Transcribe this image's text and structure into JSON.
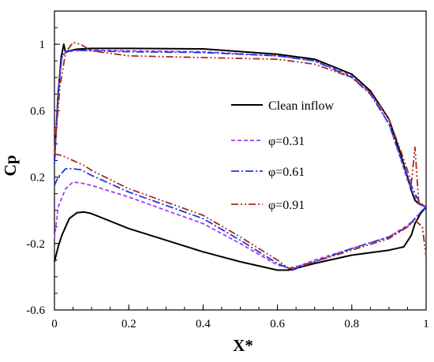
{
  "chart_data": {
    "type": "line",
    "xlabel": "X*",
    "ylabel": "Cp",
    "xlim": [
      0,
      1
    ],
    "ylim": [
      -0.6,
      1.2
    ],
    "x_ticks": [
      "0",
      "0.2",
      "0.4",
      "0.6",
      "0.8",
      "1"
    ],
    "y_ticks": [
      "1",
      "0.6",
      "0.2",
      "-0.2",
      "-0.6"
    ],
    "x_tick_values": [
      0,
      0.2,
      0.4,
      0.6,
      0.8,
      1.0
    ],
    "y_tick_values": [
      1,
      0.6,
      0.2,
      -0.2,
      -0.6
    ],
    "legend_position": "middle-right",
    "series": [
      {
        "name": "Clean inflow",
        "color": "#000000",
        "dash": "solid",
        "upper": [
          [
            0.0,
            0.3
          ],
          [
            0.01,
            0.7
          ],
          [
            0.018,
            0.92
          ],
          [
            0.025,
            1.0
          ],
          [
            0.03,
            0.95
          ],
          [
            0.04,
            0.96
          ],
          [
            0.06,
            0.97
          ],
          [
            0.1,
            0.975
          ],
          [
            0.2,
            0.975
          ],
          [
            0.4,
            0.972
          ],
          [
            0.6,
            0.94
          ],
          [
            0.7,
            0.91
          ],
          [
            0.8,
            0.82
          ],
          [
            0.85,
            0.72
          ],
          [
            0.9,
            0.55
          ],
          [
            0.93,
            0.35
          ],
          [
            0.95,
            0.2
          ],
          [
            0.96,
            0.12
          ],
          [
            0.97,
            0.06
          ],
          [
            0.98,
            0.04
          ],
          [
            1.0,
            0.02
          ]
        ],
        "lower": [
          [
            0.0,
            -0.31
          ],
          [
            0.01,
            -0.22
          ],
          [
            0.02,
            -0.15
          ],
          [
            0.04,
            -0.05
          ],
          [
            0.06,
            -0.015
          ],
          [
            0.08,
            -0.01
          ],
          [
            0.1,
            -0.02
          ],
          [
            0.2,
            -0.11
          ],
          [
            0.3,
            -0.18
          ],
          [
            0.4,
            -0.25
          ],
          [
            0.5,
            -0.31
          ],
          [
            0.6,
            -0.36
          ],
          [
            0.63,
            -0.36
          ],
          [
            0.7,
            -0.32
          ],
          [
            0.8,
            -0.27
          ],
          [
            0.9,
            -0.24
          ],
          [
            0.94,
            -0.22
          ],
          [
            0.96,
            -0.15
          ],
          [
            0.97,
            -0.08
          ],
          [
            0.985,
            -0.02
          ],
          [
            1.0,
            0.02
          ]
        ]
      },
      {
        "name": "φ=0.31",
        "color": "#a43cf0",
        "dash": "short-dash",
        "upper": [
          [
            0.0,
            0.3
          ],
          [
            0.01,
            0.72
          ],
          [
            0.02,
            0.92
          ],
          [
            0.03,
            0.95
          ],
          [
            0.05,
            0.96
          ],
          [
            0.1,
            0.965
          ],
          [
            0.2,
            0.96
          ],
          [
            0.4,
            0.955
          ],
          [
            0.6,
            0.93
          ],
          [
            0.7,
            0.9
          ],
          [
            0.8,
            0.81
          ],
          [
            0.85,
            0.71
          ],
          [
            0.9,
            0.52
          ],
          [
            0.93,
            0.32
          ],
          [
            0.95,
            0.18
          ],
          [
            0.97,
            0.08
          ],
          [
            0.985,
            0.03
          ],
          [
            1.0,
            0.02
          ]
        ],
        "lower": [
          [
            0.0,
            -0.17
          ],
          [
            0.01,
            0.02
          ],
          [
            0.03,
            0.13
          ],
          [
            0.05,
            0.17
          ],
          [
            0.07,
            0.165
          ],
          [
            0.1,
            0.15
          ],
          [
            0.2,
            0.08
          ],
          [
            0.3,
            0.0
          ],
          [
            0.4,
            -0.08
          ],
          [
            0.5,
            -0.2
          ],
          [
            0.6,
            -0.33
          ],
          [
            0.64,
            -0.35
          ],
          [
            0.7,
            -0.3
          ],
          [
            0.8,
            -0.23
          ],
          [
            0.9,
            -0.16
          ],
          [
            0.95,
            -0.09
          ],
          [
            0.97,
            -0.05
          ],
          [
            0.99,
            0.0
          ],
          [
            1.0,
            0.02
          ]
        ]
      },
      {
        "name": "φ=0.61",
        "color": "#1a3ad8",
        "dash": "dash-dot",
        "upper": [
          [
            0.0,
            0.28
          ],
          [
            0.01,
            0.72
          ],
          [
            0.02,
            0.93
          ],
          [
            0.035,
            0.96
          ],
          [
            0.06,
            0.965
          ],
          [
            0.1,
            0.96
          ],
          [
            0.2,
            0.955
          ],
          [
            0.4,
            0.95
          ],
          [
            0.6,
            0.93
          ],
          [
            0.7,
            0.9
          ],
          [
            0.8,
            0.8
          ],
          [
            0.85,
            0.7
          ],
          [
            0.9,
            0.52
          ],
          [
            0.93,
            0.33
          ],
          [
            0.95,
            0.2
          ],
          [
            0.97,
            0.1
          ],
          [
            0.985,
            0.04
          ],
          [
            1.0,
            0.02
          ]
        ],
        "lower": [
          [
            0.0,
            0.15
          ],
          [
            0.01,
            0.2
          ],
          [
            0.03,
            0.25
          ],
          [
            0.05,
            0.25
          ],
          [
            0.07,
            0.245
          ],
          [
            0.1,
            0.21
          ],
          [
            0.2,
            0.11
          ],
          [
            0.3,
            0.03
          ],
          [
            0.4,
            -0.05
          ],
          [
            0.5,
            -0.18
          ],
          [
            0.6,
            -0.32
          ],
          [
            0.64,
            -0.36
          ],
          [
            0.7,
            -0.31
          ],
          [
            0.8,
            -0.23
          ],
          [
            0.9,
            -0.16
          ],
          [
            0.95,
            -0.1
          ],
          [
            0.97,
            -0.05
          ],
          [
            0.99,
            0.0
          ],
          [
            1.0,
            0.02
          ]
        ]
      },
      {
        "name": "φ=0.91",
        "color": "#a8291d",
        "dash": "dash-dot-dot",
        "upper": [
          [
            0.0,
            0.35
          ],
          [
            0.015,
            0.75
          ],
          [
            0.03,
            0.95
          ],
          [
            0.05,
            1.01
          ],
          [
            0.07,
            1.0
          ],
          [
            0.1,
            0.96
          ],
          [
            0.2,
            0.93
          ],
          [
            0.4,
            0.92
          ],
          [
            0.6,
            0.91
          ],
          [
            0.7,
            0.88
          ],
          [
            0.8,
            0.8
          ],
          [
            0.85,
            0.71
          ],
          [
            0.9,
            0.55
          ],
          [
            0.93,
            0.37
          ],
          [
            0.95,
            0.24
          ],
          [
            0.96,
            0.16
          ],
          [
            0.97,
            0.38
          ],
          [
            0.98,
            0.05
          ],
          [
            1.0,
            0.02
          ]
        ],
        "lower": [
          [
            0.0,
            0.34
          ],
          [
            0.02,
            0.33
          ],
          [
            0.05,
            0.3
          ],
          [
            0.08,
            0.27
          ],
          [
            0.1,
            0.24
          ],
          [
            0.2,
            0.13
          ],
          [
            0.3,
            0.05
          ],
          [
            0.4,
            -0.03
          ],
          [
            0.5,
            -0.16
          ],
          [
            0.6,
            -0.3
          ],
          [
            0.63,
            -0.35
          ],
          [
            0.7,
            -0.31
          ],
          [
            0.8,
            -0.24
          ],
          [
            0.9,
            -0.17
          ],
          [
            0.95,
            -0.1
          ],
          [
            0.97,
            -0.06
          ],
          [
            0.99,
            -0.1
          ],
          [
            1.0,
            -0.28
          ]
        ]
      }
    ]
  }
}
